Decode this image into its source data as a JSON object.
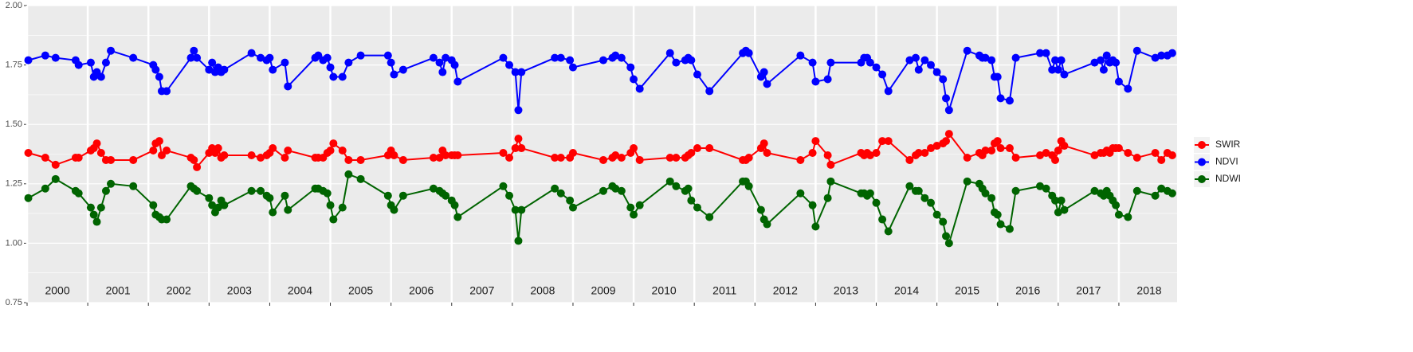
{
  "chart_data": {
    "type": "line",
    "x": [
      2000.02,
      2000.3,
      2000.47,
      2000.8,
      2000.85,
      2001.05,
      2001.1,
      2001.15,
      2001.22,
      2001.3,
      2001.38,
      2001.75,
      2002.08,
      2002.12,
      2002.18,
      2002.22,
      2002.3,
      2002.7,
      2002.75,
      2002.8,
      2003.0,
      2003.05,
      2003.1,
      2003.15,
      2003.2,
      2003.25,
      2003.7,
      2003.85,
      2003.95,
      2004.0,
      2004.05,
      2004.25,
      2004.3,
      2004.75,
      2004.8,
      2004.88,
      2004.95,
      2005.0,
      2005.05,
      2005.2,
      2005.3,
      2005.5,
      2005.95,
      2006.0,
      2006.05,
      2006.2,
      2006.7,
      2006.8,
      2006.85,
      2006.9,
      2007.0,
      2007.05,
      2007.1,
      2007.85,
      2007.95,
      2008.05,
      2008.1,
      2008.15,
      2008.7,
      2008.8,
      2008.95,
      2009.0,
      2009.5,
      2009.65,
      2009.7,
      2009.8,
      2009.95,
      2010.0,
      2010.1,
      2010.6,
      2010.7,
      2010.85,
      2010.9,
      2010.95,
      2011.05,
      2011.25,
      2011.8,
      2011.85,
      2011.9,
      2012.1,
      2012.15,
      2012.2,
      2012.75,
      2012.95,
      2013.0,
      2013.2,
      2013.25,
      2013.75,
      2013.8,
      2013.85,
      2013.9,
      2014.0,
      2014.1,
      2014.2,
      2014.55,
      2014.65,
      2014.7,
      2014.8,
      2014.9,
      2015.0,
      2015.1,
      2015.15,
      2015.2,
      2015.5,
      2015.7,
      2015.75,
      2015.8,
      2015.9,
      2015.95,
      2016.0,
      2016.05,
      2016.2,
      2016.3,
      2016.7,
      2016.8,
      2016.9,
      2016.95,
      2017.0,
      2017.05,
      2017.1,
      2017.6,
      2017.7,
      2017.75,
      2017.8,
      2017.85,
      2017.9,
      2017.95,
      2018.0,
      2018.15,
      2018.3,
      2018.6,
      2018.7,
      2018.8,
      2018.88
    ],
    "series": [
      {
        "name": "SWIR",
        "color": "#ff0000",
        "values": [
          1.38,
          1.36,
          1.33,
          1.36,
          1.36,
          1.39,
          1.4,
          1.42,
          1.38,
          1.35,
          1.35,
          1.35,
          1.39,
          1.42,
          1.43,
          1.37,
          1.39,
          1.36,
          1.35,
          1.32,
          1.38,
          1.4,
          1.38,
          1.4,
          1.36,
          1.37,
          1.37,
          1.36,
          1.37,
          1.38,
          1.4,
          1.36,
          1.39,
          1.36,
          1.36,
          1.36,
          1.38,
          1.39,
          1.42,
          1.39,
          1.35,
          1.35,
          1.37,
          1.39,
          1.37,
          1.35,
          1.36,
          1.36,
          1.39,
          1.37,
          1.37,
          1.37,
          1.37,
          1.38,
          1.36,
          1.4,
          1.44,
          1.4,
          1.36,
          1.36,
          1.36,
          1.38,
          1.35,
          1.36,
          1.37,
          1.36,
          1.38,
          1.4,
          1.35,
          1.36,
          1.36,
          1.36,
          1.37,
          1.38,
          1.4,
          1.4,
          1.35,
          1.35,
          1.36,
          1.4,
          1.42,
          1.38,
          1.35,
          1.38,
          1.43,
          1.37,
          1.33,
          1.38,
          1.37,
          1.38,
          1.37,
          1.38,
          1.43,
          1.43,
          1.35,
          1.37,
          1.38,
          1.38,
          1.4,
          1.41,
          1.42,
          1.43,
          1.46,
          1.36,
          1.38,
          1.37,
          1.39,
          1.39,
          1.42,
          1.43,
          1.4,
          1.4,
          1.36,
          1.37,
          1.38,
          1.37,
          1.35,
          1.39,
          1.43,
          1.41,
          1.37,
          1.38,
          1.38,
          1.39,
          1.38,
          1.4,
          1.4,
          1.4,
          1.38,
          1.36,
          1.38,
          1.35,
          1.38,
          1.37
        ]
      },
      {
        "name": "NDVI",
        "color": "#0000ff",
        "values": [
          1.77,
          1.79,
          1.78,
          1.77,
          1.75,
          1.76,
          1.7,
          1.72,
          1.7,
          1.76,
          1.81,
          1.78,
          1.75,
          1.73,
          1.7,
          1.64,
          1.64,
          1.78,
          1.81,
          1.78,
          1.73,
          1.76,
          1.72,
          1.74,
          1.72,
          1.73,
          1.8,
          1.78,
          1.77,
          1.78,
          1.73,
          1.76,
          1.66,
          1.78,
          1.79,
          1.77,
          1.78,
          1.74,
          1.7,
          1.7,
          1.76,
          1.79,
          1.79,
          1.76,
          1.71,
          1.73,
          1.78,
          1.76,
          1.72,
          1.78,
          1.77,
          1.75,
          1.68,
          1.78,
          1.75,
          1.72,
          1.56,
          1.72,
          1.78,
          1.78,
          1.77,
          1.74,
          1.77,
          1.78,
          1.79,
          1.78,
          1.74,
          1.69,
          1.65,
          1.8,
          1.76,
          1.77,
          1.78,
          1.77,
          1.71,
          1.64,
          1.8,
          1.81,
          1.8,
          1.7,
          1.72,
          1.67,
          1.79,
          1.76,
          1.68,
          1.69,
          1.76,
          1.76,
          1.78,
          1.78,
          1.76,
          1.74,
          1.71,
          1.64,
          1.77,
          1.78,
          1.73,
          1.77,
          1.75,
          1.72,
          1.69,
          1.61,
          1.56,
          1.81,
          1.79,
          1.78,
          1.78,
          1.77,
          1.7,
          1.7,
          1.61,
          1.6,
          1.78,
          1.8,
          1.8,
          1.73,
          1.77,
          1.73,
          1.77,
          1.71,
          1.76,
          1.77,
          1.73,
          1.79,
          1.76,
          1.77,
          1.76,
          1.68,
          1.65,
          1.81,
          1.78,
          1.79,
          1.79,
          1.8
        ]
      },
      {
        "name": "NDWI",
        "color": "#006400",
        "values": [
          1.19,
          1.23,
          1.27,
          1.22,
          1.21,
          1.15,
          1.12,
          1.09,
          1.15,
          1.22,
          1.25,
          1.24,
          1.16,
          1.12,
          1.11,
          1.1,
          1.1,
          1.24,
          1.23,
          1.22,
          1.19,
          1.16,
          1.13,
          1.15,
          1.18,
          1.16,
          1.22,
          1.22,
          1.2,
          1.19,
          1.13,
          1.2,
          1.14,
          1.23,
          1.23,
          1.22,
          1.21,
          1.16,
          1.1,
          1.15,
          1.29,
          1.27,
          1.2,
          1.16,
          1.14,
          1.2,
          1.23,
          1.22,
          1.21,
          1.2,
          1.18,
          1.16,
          1.11,
          1.24,
          1.2,
          1.14,
          1.01,
          1.14,
          1.23,
          1.21,
          1.18,
          1.15,
          1.22,
          1.24,
          1.23,
          1.22,
          1.15,
          1.12,
          1.16,
          1.26,
          1.24,
          1.22,
          1.23,
          1.18,
          1.15,
          1.11,
          1.26,
          1.26,
          1.24,
          1.14,
          1.1,
          1.08,
          1.21,
          1.16,
          1.07,
          1.19,
          1.26,
          1.21,
          1.21,
          1.2,
          1.21,
          1.17,
          1.1,
          1.05,
          1.24,
          1.22,
          1.22,
          1.19,
          1.17,
          1.12,
          1.09,
          1.03,
          1.0,
          1.26,
          1.25,
          1.23,
          1.21,
          1.19,
          1.13,
          1.12,
          1.08,
          1.06,
          1.22,
          1.24,
          1.23,
          1.2,
          1.18,
          1.13,
          1.18,
          1.14,
          1.22,
          1.21,
          1.2,
          1.22,
          1.2,
          1.18,
          1.16,
          1.12,
          1.11,
          1.22,
          1.2,
          1.23,
          1.22,
          1.21
        ]
      }
    ],
    "xlim": [
      2000,
      2018.96
    ],
    "xticks": [
      2000,
      2001,
      2002,
      2003,
      2004,
      2005,
      2006,
      2007,
      2008,
      2009,
      2010,
      2011,
      2012,
      2013,
      2014,
      2015,
      2016,
      2017,
      2018
    ],
    "ylim": [
      0.75,
      2.0
    ],
    "yticks": [
      {
        "value": 0.75,
        "label": "0.75"
      },
      {
        "value": 1.0,
        "label": "1.00"
      },
      {
        "value": 1.25,
        "label": "1.25"
      },
      {
        "value": 1.5,
        "label": "1.50"
      },
      {
        "value": 1.75,
        "label": "1.75"
      },
      {
        "value": 2.0,
        "label": "2.00"
      }
    ],
    "grid": true,
    "legend": "right"
  }
}
